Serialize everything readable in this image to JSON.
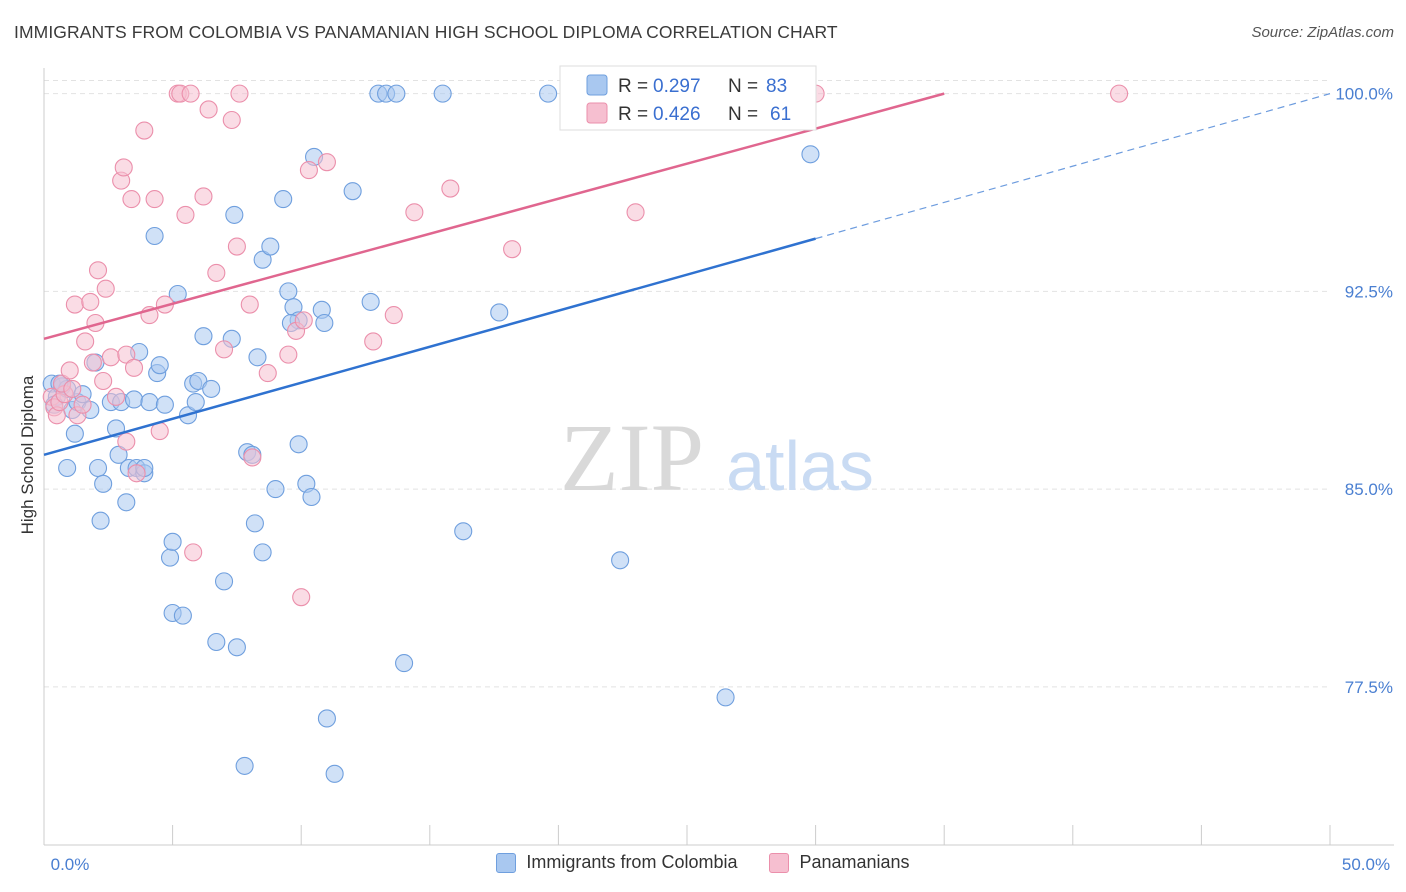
{
  "title": "IMMIGRANTS FROM COLOMBIA VS PANAMANIAN HIGH SCHOOL DIPLOMA CORRELATION CHART",
  "source": "Source: ZipAtlas.com",
  "watermark": {
    "zip": "ZIP",
    "atlas": "atlas"
  },
  "colors": {
    "blue_fill": "#a9c8f0",
    "blue_stroke": "#6f9fde",
    "blue_line": "#2f72d0",
    "pink_fill": "#f6bfd0",
    "pink_stroke": "#eb8fab",
    "pink_line": "#e0668f",
    "tick_text": "#4a7fd1",
    "grid": "#e2e2e2"
  },
  "legend": [
    {
      "r_label": "R =",
      "r_value": "0.297",
      "n_label": "N =",
      "n_value": "83"
    },
    {
      "r_label": "R =",
      "r_value": "0.426",
      "n_label": "N =",
      "n_value": "61"
    }
  ],
  "bottom_legend": [
    {
      "label": "Immigrants from Colombia"
    },
    {
      "label": "Panamanians"
    }
  ],
  "chart_data": {
    "type": "scatter",
    "title": "IMMIGRANTS FROM COLOMBIA VS PANAMANIAN HIGH SCHOOL DIPLOMA CORRELATION CHART",
    "xlabel": "",
    "ylabel": "High School Diploma",
    "xlim": [
      0,
      50
    ],
    "ylim": [
      71.5,
      101.2
    ],
    "x_ticks": [
      {
        "value": 0,
        "label": "0.0%"
      },
      {
        "value": 50,
        "label": "50.0%"
      }
    ],
    "y_ticks": [
      {
        "value": 100,
        "label": "100.0%"
      },
      {
        "value": 92.5,
        "label": "92.5%"
      },
      {
        "value": 85,
        "label": "85.0%"
      },
      {
        "value": 77.5,
        "label": "77.5%"
      }
    ],
    "series": [
      {
        "name": "Immigrants from Colombia",
        "r": 0.297,
        "n": 83,
        "trend": {
          "x0": 0,
          "y0": 86.3,
          "x1": 30,
          "y1": 94.5,
          "dash_x1": 50,
          "dash_y1": 100.0
        },
        "points": [
          [
            0.3,
            89
          ],
          [
            0.5,
            88.5
          ],
          [
            0.4,
            88.2
          ],
          [
            0.7,
            88.9
          ],
          [
            0.9,
            88.8
          ],
          [
            1.1,
            88.0
          ],
          [
            1.3,
            88.3
          ],
          [
            1.5,
            88.6
          ],
          [
            0.6,
            89.0
          ],
          [
            1.2,
            87.1
          ],
          [
            1.8,
            88.0
          ],
          [
            2.0,
            89.8
          ],
          [
            0.9,
            85.8
          ],
          [
            2.1,
            85.8
          ],
          [
            2.3,
            85.2
          ],
          [
            2.2,
            83.8
          ],
          [
            2.6,
            88.3
          ],
          [
            2.8,
            87.3
          ],
          [
            3.0,
            88.3
          ],
          [
            2.9,
            86.3
          ],
          [
            3.2,
            84.5
          ],
          [
            3.3,
            85.8
          ],
          [
            3.5,
            88.4
          ],
          [
            3.7,
            90.2
          ],
          [
            3.6,
            85.8
          ],
          [
            3.9,
            85.6
          ],
          [
            3.9,
            85.8
          ],
          [
            4.1,
            88.3
          ],
          [
            4.4,
            89.4
          ],
          [
            4.5,
            89.7
          ],
          [
            4.3,
            94.6
          ],
          [
            4.7,
            88.2
          ],
          [
            4.9,
            82.4
          ],
          [
            5.0,
            83.0
          ],
          [
            5.2,
            92.4
          ],
          [
            5.0,
            80.3
          ],
          [
            5.4,
            80.2
          ],
          [
            5.6,
            87.8
          ],
          [
            5.8,
            89.0
          ],
          [
            6.0,
            89.1
          ],
          [
            5.9,
            88.3
          ],
          [
            6.2,
            90.8
          ],
          [
            6.5,
            88.8
          ],
          [
            6.7,
            79.2
          ],
          [
            7.0,
            81.5
          ],
          [
            7.3,
            90.7
          ],
          [
            7.4,
            95.4
          ],
          [
            7.5,
            79.0
          ],
          [
            7.8,
            74.5
          ],
          [
            7.9,
            86.4
          ],
          [
            8.1,
            86.3
          ],
          [
            8.2,
            83.7
          ],
          [
            8.3,
            90.0
          ],
          [
            8.5,
            82.6
          ],
          [
            8.5,
            93.7
          ],
          [
            8.8,
            94.2
          ],
          [
            9.0,
            85.0
          ],
          [
            9.3,
            96.0
          ],
          [
            9.5,
            92.5
          ],
          [
            9.7,
            91.9
          ],
          [
            9.9,
            91.4
          ],
          [
            9.6,
            91.3
          ],
          [
            9.9,
            86.7
          ],
          [
            10.2,
            85.2
          ],
          [
            10.4,
            84.7
          ],
          [
            10.5,
            97.6
          ],
          [
            10.8,
            91.8
          ],
          [
            10.9,
            91.3
          ],
          [
            11.0,
            76.3
          ],
          [
            11.3,
            74.2
          ],
          [
            12.0,
            96.3
          ],
          [
            12.7,
            92.1
          ],
          [
            13.0,
            100
          ],
          [
            13.3,
            100
          ],
          [
            13.7,
            100
          ],
          [
            14.0,
            78.4
          ],
          [
            15.5,
            100
          ],
          [
            16.3,
            83.4
          ],
          [
            17.7,
            91.7
          ],
          [
            19.6,
            100
          ],
          [
            22.4,
            82.3
          ],
          [
            26.5,
            77.1
          ],
          [
            29.8,
            97.7
          ]
        ]
      },
      {
        "name": "Panamanians",
        "r": 0.426,
        "n": 61,
        "trend": {
          "x0": 0,
          "y0": 90.7,
          "x1": 35,
          "y1": 100.0
        },
        "points": [
          [
            0.3,
            88.5
          ],
          [
            0.4,
            88.1
          ],
          [
            0.5,
            87.8
          ],
          [
            0.6,
            88.3
          ],
          [
            0.8,
            88.6
          ],
          [
            0.7,
            89.0
          ],
          [
            1.0,
            89.5
          ],
          [
            1.1,
            88.8
          ],
          [
            1.2,
            92.0
          ],
          [
            1.3,
            87.8
          ],
          [
            1.5,
            88.2
          ],
          [
            1.6,
            90.6
          ],
          [
            1.8,
            92.1
          ],
          [
            1.9,
            89.8
          ],
          [
            2.0,
            91.3
          ],
          [
            2.1,
            93.3
          ],
          [
            2.3,
            89.1
          ],
          [
            2.4,
            92.6
          ],
          [
            2.6,
            90.0
          ],
          [
            2.8,
            88.5
          ],
          [
            3.0,
            96.7
          ],
          [
            3.1,
            97.2
          ],
          [
            3.2,
            86.8
          ],
          [
            3.2,
            90.1
          ],
          [
            3.4,
            96.0
          ],
          [
            3.5,
            89.6
          ],
          [
            3.6,
            85.6
          ],
          [
            3.9,
            98.6
          ],
          [
            4.1,
            91.6
          ],
          [
            4.3,
            96.0
          ],
          [
            4.5,
            87.2
          ],
          [
            4.7,
            92.0
          ],
          [
            5.2,
            100
          ],
          [
            5.3,
            100
          ],
          [
            5.5,
            95.4
          ],
          [
            5.7,
            100
          ],
          [
            5.8,
            82.6
          ],
          [
            6.2,
            96.1
          ],
          [
            6.4,
            99.4
          ],
          [
            6.7,
            93.2
          ],
          [
            7.0,
            90.3
          ],
          [
            7.3,
            99.0
          ],
          [
            7.5,
            94.2
          ],
          [
            7.6,
            100
          ],
          [
            8.0,
            92.0
          ],
          [
            8.1,
            86.2
          ],
          [
            8.7,
            89.4
          ],
          [
            9.5,
            90.1
          ],
          [
            9.8,
            91.0
          ],
          [
            10.0,
            80.9
          ],
          [
            10.1,
            91.4
          ],
          [
            10.3,
            97.1
          ],
          [
            11.0,
            97.4
          ],
          [
            12.8,
            90.6
          ],
          [
            13.6,
            91.6
          ],
          [
            14.4,
            95.5
          ],
          [
            15.8,
            96.4
          ],
          [
            18.2,
            94.1
          ],
          [
            23.0,
            95.5
          ],
          [
            30.0,
            100
          ],
          [
            41.8,
            100
          ]
        ]
      }
    ]
  }
}
